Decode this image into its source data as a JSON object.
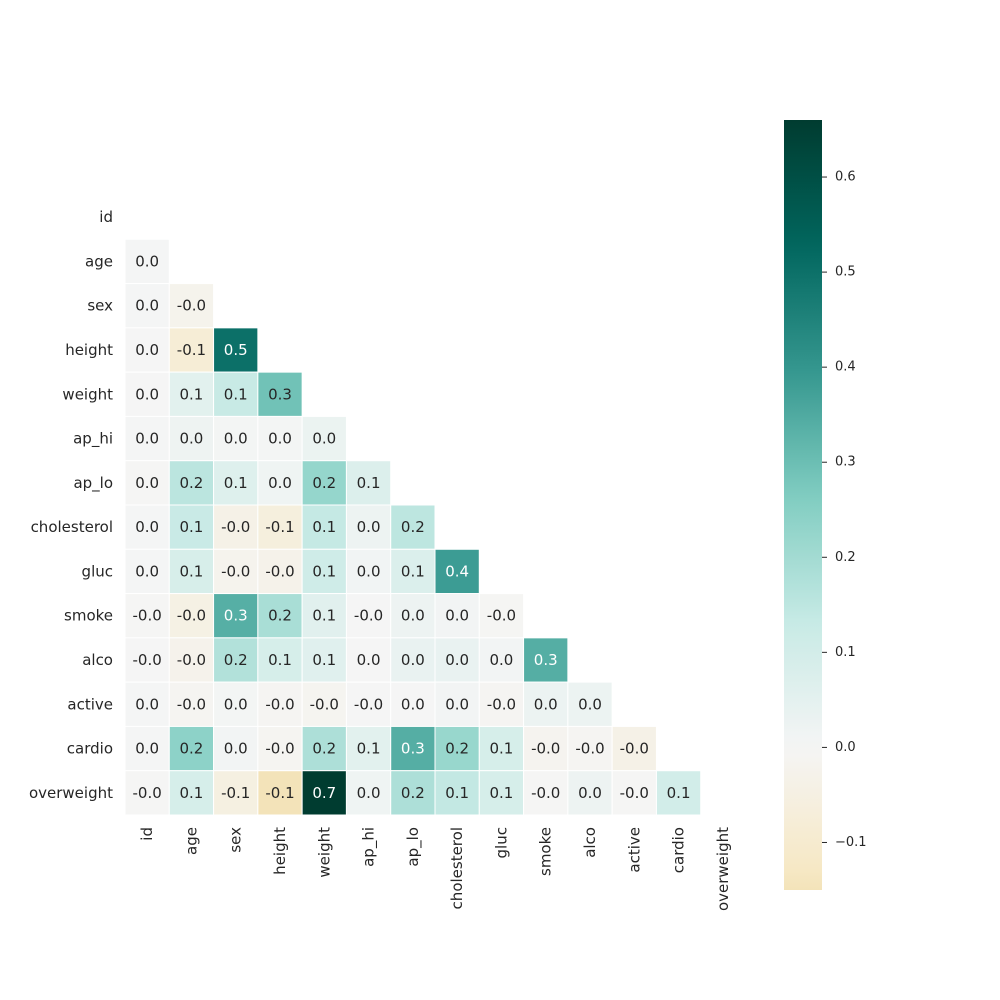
{
  "chart_data": {
    "type": "heatmap",
    "title": "",
    "xlabel": "",
    "ylabel": "",
    "mask": "upper-triangle-including-diagonal",
    "variables": [
      "id",
      "age",
      "sex",
      "height",
      "weight",
      "ap_hi",
      "ap_lo",
      "cholesterol",
      "gluc",
      "smoke",
      "alco",
      "active",
      "cardio",
      "overweight"
    ],
    "values": [
      [
        null,
        null,
        null,
        null,
        null,
        null,
        null,
        null,
        null,
        null,
        null,
        null,
        null,
        null
      ],
      [
        0.003,
        null,
        null,
        null,
        null,
        null,
        null,
        null,
        null,
        null,
        null,
        null,
        null,
        null
      ],
      [
        0.003,
        -0.023,
        null,
        null,
        null,
        null,
        null,
        null,
        null,
        null,
        null,
        null,
        null,
        null
      ],
      [
        0.0,
        -0.082,
        0.5,
        null,
        null,
        null,
        null,
        null,
        null,
        null,
        null,
        null,
        null,
        null
      ],
      [
        0.0,
        0.054,
        0.13,
        0.29,
        null,
        null,
        null,
        null,
        null,
        null,
        null,
        null,
        null,
        null
      ],
      [
        0.003,
        0.021,
        0.005,
        0.006,
        0.03,
        null,
        null,
        null,
        null,
        null,
        null,
        null,
        null,
        null
      ],
      [
        -0.003,
        0.154,
        0.066,
        0.017,
        0.225,
        0.072,
        null,
        null,
        null,
        null,
        null,
        null,
        null,
        null
      ],
      [
        0.003,
        0.127,
        -0.036,
        -0.064,
        0.135,
        0.022,
        0.15,
        null,
        null,
        null,
        null,
        null,
        null,
        null
      ],
      [
        0.002,
        0.087,
        -0.021,
        -0.03,
        0.108,
        0.011,
        0.075,
        0.383,
        null,
        null,
        null,
        null,
        null,
        null
      ],
      [
        -0.003,
        -0.044,
        0.338,
        0.187,
        0.056,
        -0.001,
        0.024,
        0.01,
        -0.005,
        null,
        null,
        null,
        null,
        null
      ],
      [
        -0.001,
        -0.026,
        0.171,
        0.089,
        0.059,
        0.001,
        0.034,
        0.035,
        0.01,
        0.34,
        null,
        null,
        null,
        null
      ],
      [
        0.004,
        -0.011,
        0.006,
        -0.007,
        -0.014,
        -0.0,
        0.0,
        0.01,
        -0.007,
        0.026,
        0.025,
        null,
        null,
        null
      ],
      [
        0.003,
        0.24,
        0.008,
        -0.011,
        0.18,
        0.054,
        0.34,
        0.22,
        0.089,
        -0.016,
        -0.007,
        -0.036,
        null,
        null
      ],
      [
        -0.002,
        0.09,
        -0.053,
        -0.15,
        0.66,
        0.017,
        0.18,
        0.14,
        0.09,
        -0.003,
        0.024,
        -0.003,
        0.1,
        null
      ]
    ],
    "cell_labels": [
      [
        null,
        null,
        null,
        null,
        null,
        null,
        null,
        null,
        null,
        null,
        null,
        null,
        null,
        null
      ],
      [
        "0.0",
        null,
        null,
        null,
        null,
        null,
        null,
        null,
        null,
        null,
        null,
        null,
        null,
        null
      ],
      [
        "0.0",
        "-0.0",
        null,
        null,
        null,
        null,
        null,
        null,
        null,
        null,
        null,
        null,
        null,
        null
      ],
      [
        "0.0",
        "-0.1",
        "0.5",
        null,
        null,
        null,
        null,
        null,
        null,
        null,
        null,
        null,
        null,
        null
      ],
      [
        "0.0",
        "0.1",
        "0.1",
        "0.3",
        null,
        null,
        null,
        null,
        null,
        null,
        null,
        null,
        null,
        null
      ],
      [
        "0.0",
        "0.0",
        "0.0",
        "0.0",
        "0.0",
        null,
        null,
        null,
        null,
        null,
        null,
        null,
        null,
        null
      ],
      [
        "0.0",
        "0.2",
        "0.1",
        "0.0",
        "0.2",
        "0.1",
        null,
        null,
        null,
        null,
        null,
        null,
        null,
        null
      ],
      [
        "0.0",
        "0.1",
        "-0.0",
        "-0.1",
        "0.1",
        "0.0",
        "0.2",
        null,
        null,
        null,
        null,
        null,
        null,
        null
      ],
      [
        "0.0",
        "0.1",
        "-0.0",
        "-0.0",
        "0.1",
        "0.0",
        "0.1",
        "0.4",
        null,
        null,
        null,
        null,
        null,
        null
      ],
      [
        "-0.0",
        "-0.0",
        "0.3",
        "0.2",
        "0.1",
        "-0.0",
        "0.0",
        "0.0",
        "-0.0",
        null,
        null,
        null,
        null,
        null
      ],
      [
        "-0.0",
        "-0.0",
        "0.2",
        "0.1",
        "0.1",
        "0.0",
        "0.0",
        "0.0",
        "0.0",
        "0.3",
        null,
        null,
        null,
        null
      ],
      [
        "0.0",
        "-0.0",
        "0.0",
        "-0.0",
        "-0.0",
        "-0.0",
        "0.0",
        "0.0",
        "-0.0",
        "0.0",
        "0.0",
        null,
        null,
        null
      ],
      [
        "0.0",
        "0.2",
        "0.0",
        "-0.0",
        "0.2",
        "0.1",
        "0.3",
        "0.2",
        "0.1",
        "-0.0",
        "-0.0",
        "-0.0",
        null,
        null
      ],
      [
        "-0.0",
        "0.1",
        "-0.1",
        "-0.1",
        "0.7",
        "0.0",
        "0.2",
        "0.1",
        "0.1",
        "-0.0",
        "0.0",
        "-0.0",
        "0.1",
        null
      ]
    ],
    "colormap": "BrBG",
    "center": 0.0,
    "vmin": -0.15,
    "vmax": 0.66,
    "colorbar": {
      "ticks": [
        -0.1,
        0.0,
        0.1,
        0.2,
        0.3,
        0.4,
        0.5,
        0.6
      ],
      "tick_labels": [
        "−0.1",
        "0.0",
        "0.1",
        "0.2",
        "0.3",
        "0.4",
        "0.5",
        "0.6"
      ],
      "position": "right"
    },
    "grid": false,
    "cell_separator_color": "#ffffff",
    "text_color_dark": "#262626",
    "text_color_light": "#ffffff"
  }
}
